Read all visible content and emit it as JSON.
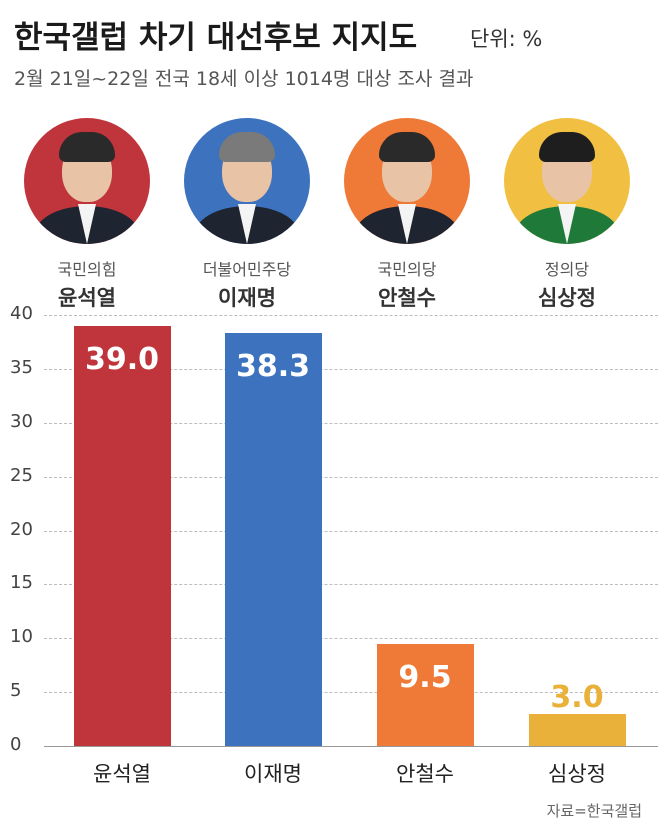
{
  "header": {
    "title": "한국갤럽 차기 대선후보 지지도",
    "unit": "단위: %",
    "subtitle": "2월 21일~22일 전국 18세 이상 1014명 대상 조사 결과"
  },
  "candidates": [
    {
      "party": "국민의힘",
      "name": "윤석열",
      "photo_color": "#c0353b",
      "hair_color": "#2a2a2a"
    },
    {
      "party": "더불어민주당",
      "name": "이재명",
      "photo_color": "#3d72bf",
      "hair_color": "#7a7a7a"
    },
    {
      "party": "국민의당",
      "name": "안철수",
      "photo_color": "#ef7a37",
      "hair_color": "#2a2a2a"
    },
    {
      "party": "정의당",
      "name": "심상정",
      "photo_color": "#f1c043",
      "hair_color": "#1e1e1e"
    }
  ],
  "chart_data": {
    "type": "bar",
    "categories": [
      "윤석열",
      "이재명",
      "안철수",
      "심상정"
    ],
    "values": [
      39.0,
      38.3,
      9.5,
      3.0
    ],
    "value_labels": [
      "39.0",
      "38.3",
      "9.5",
      "3.0"
    ],
    "colors": [
      "#c0353b",
      "#3d72bf",
      "#ef7a37",
      "#e9b13a"
    ],
    "value_label_colors": [
      "#ffffff",
      "#ffffff",
      "#ffffff",
      "#e9b13a"
    ],
    "ylim": [
      0,
      40
    ],
    "yticks": [
      "0",
      "5",
      "10",
      "15",
      "20",
      "25",
      "30",
      "35",
      "40"
    ],
    "grid": true
  },
  "source": "자료=한국갤럽"
}
